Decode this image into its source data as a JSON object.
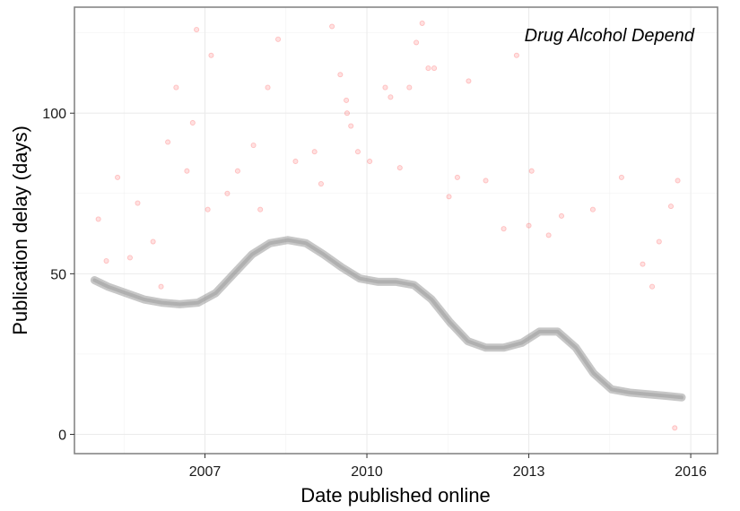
{
  "chart_data": {
    "type": "scatter",
    "title": "",
    "annotation": "Drug Alcohol Depend",
    "xlabel": "Date published online",
    "ylabel": "Publication delay (days)",
    "x_ticks": [
      "2007",
      "2010",
      "2013",
      "2016"
    ],
    "y_ticks": [
      "0",
      "50",
      "100"
    ],
    "xlim": [
      "2004-08-01",
      "2016-07-01"
    ],
    "ylim": [
      -6,
      133
    ],
    "grid": true,
    "point_color": "#ff0000",
    "point_opacity": 0.12,
    "smooth_color": "#999999",
    "series": [
      {
        "type": "scatter",
        "points": [
          [
            "2005-01-10",
            67
          ],
          [
            "2005-03-05",
            54
          ],
          [
            "2005-05-20",
            80
          ],
          [
            "2005-08-12",
            55
          ],
          [
            "2005-10-03",
            72
          ],
          [
            "2006-01-15",
            60
          ],
          [
            "2006-03-10",
            46
          ],
          [
            "2006-04-25",
            91
          ],
          [
            "2006-06-20",
            108
          ],
          [
            "2006-09-01",
            82
          ],
          [
            "2006-10-10",
            97
          ],
          [
            "2006-11-05",
            126
          ],
          [
            "2007-02-12",
            118
          ],
          [
            "2007-01-20",
            70
          ],
          [
            "2007-06-01",
            75
          ],
          [
            "2007-08-10",
            82
          ],
          [
            "2007-11-25",
            90
          ],
          [
            "2008-01-10",
            70
          ],
          [
            "2008-03-01",
            108
          ],
          [
            "2008-05-10",
            123
          ],
          [
            "2008-09-05",
            85
          ],
          [
            "2009-01-12",
            88
          ],
          [
            "2009-02-25",
            78
          ],
          [
            "2009-05-10",
            127
          ],
          [
            "2009-07-05",
            112
          ],
          [
            "2009-08-15",
            104
          ],
          [
            "2009-08-20",
            100
          ],
          [
            "2009-09-15",
            96
          ],
          [
            "2009-11-01",
            88
          ],
          [
            "2010-01-20",
            85
          ],
          [
            "2010-05-05",
            108
          ],
          [
            "2010-06-10",
            105
          ],
          [
            "2010-08-12",
            83
          ],
          [
            "2010-10-15",
            108
          ],
          [
            "2010-12-01",
            122
          ],
          [
            "2011-01-10",
            128
          ],
          [
            "2011-02-20",
            114
          ],
          [
            "2011-04-01",
            114
          ],
          [
            "2011-07-10",
            74
          ],
          [
            "2011-09-05",
            80
          ],
          [
            "2011-11-20",
            110
          ],
          [
            "2012-03-15",
            79
          ],
          [
            "2012-07-15",
            64
          ],
          [
            "2012-10-10",
            118
          ],
          [
            "2013-01-01",
            65
          ],
          [
            "2013-01-20",
            82
          ],
          [
            "2013-05-15",
            62
          ],
          [
            "2013-08-10",
            68
          ],
          [
            "2014-03-10",
            70
          ],
          [
            "2014-09-20",
            80
          ],
          [
            "2015-02-10",
            53
          ],
          [
            "2015-04-15",
            46
          ],
          [
            "2015-06-01",
            60
          ],
          [
            "2015-08-20",
            71
          ],
          [
            "2015-10-05",
            79
          ],
          [
            "2015-09-15",
            2
          ]
        ]
      },
      {
        "type": "smooth",
        "points": [
          [
            "2004-12-15",
            48
          ],
          [
            "2005-03-15",
            46
          ],
          [
            "2005-07-15",
            44
          ],
          [
            "2005-11-15",
            42
          ],
          [
            "2006-03-15",
            41
          ],
          [
            "2006-07-15",
            40.5
          ],
          [
            "2006-11-15",
            41
          ],
          [
            "2007-03-15",
            44
          ],
          [
            "2007-07-15",
            50
          ],
          [
            "2007-11-15",
            56
          ],
          [
            "2008-03-15",
            59.5
          ],
          [
            "2008-07-15",
            60.5
          ],
          [
            "2008-11-15",
            59.5
          ],
          [
            "2009-03-15",
            56
          ],
          [
            "2009-07-15",
            52
          ],
          [
            "2009-11-15",
            48.5
          ],
          [
            "2010-03-15",
            47.5
          ],
          [
            "2010-07-15",
            47.5
          ],
          [
            "2010-11-15",
            46.5
          ],
          [
            "2011-03-15",
            42
          ],
          [
            "2011-07-15",
            35
          ],
          [
            "2011-11-15",
            29
          ],
          [
            "2012-03-15",
            27
          ],
          [
            "2012-07-15",
            27
          ],
          [
            "2012-11-15",
            28.5
          ],
          [
            "2013-03-15",
            32
          ],
          [
            "2013-07-15",
            32
          ],
          [
            "2013-11-15",
            27
          ],
          [
            "2014-03-15",
            19
          ],
          [
            "2014-07-15",
            14
          ],
          [
            "2014-11-15",
            13
          ],
          [
            "2015-03-15",
            12.5
          ],
          [
            "2015-07-15",
            12
          ],
          [
            "2015-11-01",
            11.5
          ]
        ]
      }
    ]
  }
}
